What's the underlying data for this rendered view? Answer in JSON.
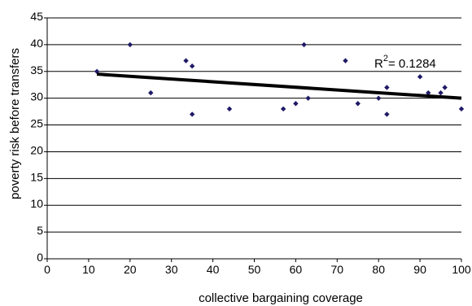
{
  "chart_data": {
    "type": "scatter",
    "title": "",
    "xlabel": "collective bargaining coverage",
    "ylabel": "poverty risk before transfers",
    "xlim": [
      0,
      100
    ],
    "ylim": [
      0,
      45
    ],
    "x_ticks": [
      "0",
      "10",
      "20",
      "30",
      "40",
      "50",
      "60",
      "70",
      "80",
      "90",
      "100"
    ],
    "y_ticks": [
      "0",
      "5",
      "10",
      "15",
      "20",
      "25",
      "30",
      "35",
      "40",
      "45"
    ],
    "grid": "horizontal",
    "legend": "none",
    "point_color": "#1f1a66",
    "trendline_color": "#000000",
    "points": [
      {
        "x": 12,
        "y": 35
      },
      {
        "x": 20,
        "y": 40
      },
      {
        "x": 25,
        "y": 31
      },
      {
        "x": 33.5,
        "y": 37
      },
      {
        "x": 35,
        "y": 36
      },
      {
        "x": 35,
        "y": 27
      },
      {
        "x": 44,
        "y": 28
      },
      {
        "x": 57,
        "y": 28
      },
      {
        "x": 60,
        "y": 29
      },
      {
        "x": 62,
        "y": 40
      },
      {
        "x": 63,
        "y": 30
      },
      {
        "x": 72,
        "y": 37
      },
      {
        "x": 75,
        "y": 29
      },
      {
        "x": 80,
        "y": 30
      },
      {
        "x": 82,
        "y": 32
      },
      {
        "x": 82,
        "y": 27
      },
      {
        "x": 90,
        "y": 34
      },
      {
        "x": 92,
        "y": 31
      },
      {
        "x": 95,
        "y": 31
      },
      {
        "x": 96,
        "y": 32
      },
      {
        "x": 100,
        "y": 28
      }
    ],
    "trendline": {
      "x": [
        12,
        100
      ],
      "y": [
        34.5,
        30
      ]
    },
    "annotation": {
      "prefix": "R",
      "superscript": "2",
      "text": "= 0.1284"
    }
  }
}
